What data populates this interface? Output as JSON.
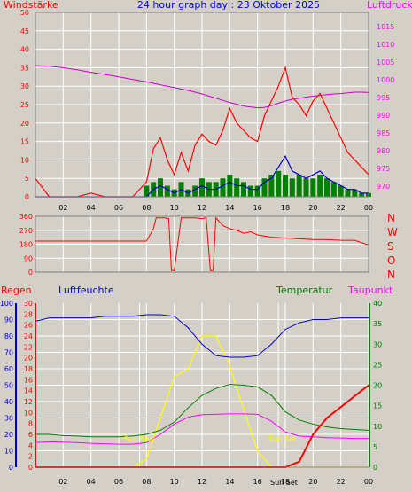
{
  "header": {
    "left_label": "Windstärke",
    "title": "24 hour graph day : 23 Oktober 2025",
    "right_label": "Luftdruck"
  },
  "colors": {
    "background": "#d4d0c8",
    "wind_axis": "#ff0000",
    "pressure_axis": "#ff00ff",
    "humidity": "#0000cc",
    "temperature": "#008000",
    "dewpoint": "#ff00ff",
    "rain": "#ff0000",
    "solar": "#ffff00",
    "grid": "#ffffff"
  },
  "x_axis": {
    "ticks": [
      "02",
      "04",
      "06",
      "08",
      "10",
      "12",
      "14",
      "16",
      "18",
      "20",
      "22",
      "00"
    ],
    "sun_rise_label": "Sun Rise",
    "sun_set_label": "Sun Set",
    "sun_set_bottom_label": "Sun Set"
  },
  "direction_labels": [
    "N",
    "W",
    "S",
    "O",
    "N"
  ],
  "bottom_header": {
    "rain": "Regen",
    "humidity": "Luftfeuchte",
    "temperature": "Temperatur",
    "dewpoint": "Taupunkt"
  },
  "chart_data": [
    {
      "type": "line",
      "title": "24 hour graph day : 23 Oktober 2025",
      "x": [
        0,
        1,
        2,
        3,
        4,
        5,
        6,
        7,
        8,
        8.5,
        9,
        9.5,
        10,
        10.5,
        11,
        11.5,
        12,
        12.5,
        13,
        13.5,
        14,
        14.5,
        15,
        15.5,
        16,
        16.5,
        17,
        17.5,
        18,
        18.5,
        19,
        19.5,
        20,
        20.5,
        21,
        21.5,
        22,
        22.5,
        23,
        23.5,
        24
      ],
      "xlim": [
        0,
        24
      ],
      "y_left": {
        "label": "Windstärke",
        "ticks": [
          0,
          5,
          10,
          15,
          20,
          25,
          30,
          35,
          40,
          45,
          50
        ],
        "lim": [
          0,
          50
        ]
      },
      "y_right": {
        "label": "Luftdruck",
        "ticks": [
          970,
          975,
          980,
          985,
          990,
          995,
          1000,
          1005,
          1010,
          1015
        ],
        "lim": [
          967,
          1019
        ]
      },
      "series": [
        {
          "name": "Windstärke",
          "axis": "left",
          "style": "gust",
          "values": [
            5,
            0,
            0,
            0,
            1,
            0,
            0,
            0,
            4,
            13,
            16,
            10,
            6,
            12,
            7,
            14,
            17,
            15,
            14,
            18,
            24,
            20,
            18,
            16,
            15,
            22,
            26,
            30,
            35,
            27,
            25,
            22,
            26,
            28,
            24,
            20,
            16,
            12,
            10,
            8,
            6
          ]
        },
        {
          "name": "",
          "axis": "left",
          "style": "average",
          "values": [
            0,
            0,
            0,
            0,
            0,
            0,
            0,
            0,
            0,
            2,
            3,
            2,
            1,
            2,
            1,
            2,
            3,
            2,
            2,
            3,
            4,
            3,
            3,
            2,
            2,
            4,
            5,
            8,
            11,
            7,
            6,
            5,
            6,
            7,
            5,
            4,
            3,
            2,
            2,
            1,
            1
          ]
        },
        {
          "name": "",
          "axis": "left",
          "style": "bars",
          "values": [
            0,
            0,
            0,
            0,
            0,
            0,
            0,
            0,
            3,
            4,
            5,
            3,
            2,
            4,
            2,
            3,
            5,
            4,
            4,
            5,
            6,
            5,
            4,
            3,
            3,
            5,
            6,
            7,
            6,
            5,
            6,
            5,
            5,
            6,
            5,
            4,
            3,
            2,
            2,
            1,
            1
          ]
        },
        {
          "name": "Luftdruck",
          "axis": "right",
          "values": [
            1004,
            1003.8,
            1003.4,
            1002.8,
            1002.1,
            1001.5,
            1000.8,
            1000.1,
            999.4,
            999,
            998.6,
            998.2,
            997.8,
            997.4,
            997,
            996.5,
            996,
            995.4,
            994.8,
            994.2,
            993.6,
            993.1,
            992.6,
            992.3,
            992.1,
            992.2,
            992.7,
            993.4,
            994,
            994.5,
            994.8,
            995.1,
            995.4,
            995.6,
            995.8,
            996,
            996.1,
            996.3,
            996.5,
            996.5,
            996.4
          ]
        }
      ]
    },
    {
      "type": "line",
      "x": [
        0,
        1,
        2,
        3,
        4,
        5,
        6,
        7,
        8,
        8.5,
        8.7,
        9,
        9.3,
        9.6,
        9.8,
        10,
        10.5,
        11,
        11.5,
        12,
        12.3,
        12.6,
        12.8,
        13,
        13.5,
        14,
        14.5,
        15,
        15.5,
        16,
        17,
        18,
        19,
        20,
        21,
        22,
        23,
        24
      ],
      "xlim": [
        0,
        24
      ],
      "ylim": [
        0,
        360
      ],
      "y_ticks": [
        0,
        90,
        180,
        270,
        360
      ],
      "series": [
        {
          "name": "",
          "values": [
            200,
            200,
            200,
            200,
            200,
            200,
            200,
            200,
            200,
            280,
            350,
            350,
            350,
            345,
            10,
            10,
            350,
            350,
            350,
            345,
            350,
            10,
            10,
            350,
            300,
            280,
            270,
            250,
            260,
            240,
            225,
            220,
            215,
            210,
            210,
            205,
            205,
            175
          ]
        }
      ]
    },
    {
      "type": "line",
      "x": [
        0,
        1,
        2,
        3,
        4,
        5,
        6,
        7,
        8,
        9,
        10,
        11,
        12,
        13,
        14,
        15,
        16,
        17,
        18,
        19,
        20,
        21,
        22,
        23,
        24
      ],
      "xlim": [
        0,
        24
      ],
      "axes": {
        "rain": {
          "label": "Regen",
          "ticks": [
            0,
            2,
            4,
            6,
            8,
            10,
            12,
            14,
            16,
            18,
            20,
            22,
            24,
            26,
            28,
            30
          ],
          "lim": [
            0,
            30
          ]
        },
        "humidity": {
          "label": "Luftfeuchte",
          "ticks": [
            0,
            10,
            20,
            30,
            40,
            50,
            60,
            70,
            80,
            90,
            100
          ],
          "lim": [
            0,
            100
          ]
        },
        "temperature": {
          "label": "Temperatur",
          "ticks": [
            0,
            5,
            10,
            15,
            20,
            25,
            30,
            35,
            40
          ],
          "lim": [
            0,
            40
          ]
        },
        "solar": {
          "label": "",
          "ticks": [],
          "lim": [
            0,
            1
          ]
        }
      },
      "series": [
        {
          "name": "Regen",
          "axis": "rain",
          "values": [
            0,
            0,
            0,
            0,
            0,
            0,
            0,
            0,
            0,
            0,
            0,
            0,
            0,
            0,
            0,
            0,
            0,
            0,
            0,
            1,
            6,
            9,
            11,
            13,
            15
          ]
        },
        {
          "name": "Luftfeuchte",
          "axis": "humidity",
          "values": [
            89,
            91,
            91,
            91,
            91,
            92,
            92,
            92,
            93,
            93,
            92,
            85,
            75,
            68,
            67,
            67,
            68,
            75,
            84,
            88,
            90,
            90,
            91,
            91,
            91
          ]
        },
        {
          "name": "Temperatur",
          "axis": "temperature",
          "values": [
            8,
            8,
            7.7,
            7.6,
            7.4,
            7.4,
            7.4,
            7.6,
            8,
            9,
            11,
            14.5,
            17.5,
            19.2,
            20.2,
            20,
            19.6,
            17.5,
            13.5,
            11.5,
            10.5,
            9.8,
            9.4,
            9.2,
            9
          ]
        },
        {
          "name": "Taupunkt",
          "axis": "temperature",
          "values": [
            6,
            6.2,
            6.1,
            6,
            5.8,
            5.7,
            5.6,
            5.6,
            6,
            8,
            10.5,
            12.2,
            12.8,
            12.9,
            13,
            13,
            12.9,
            11.2,
            8.6,
            7.6,
            7.4,
            7.2,
            7.1,
            7,
            7
          ]
        },
        {
          "name": "",
          "axis": "solar",
          "values": [
            0,
            0,
            0,
            0,
            0,
            0,
            0,
            0,
            0.05,
            0.3,
            0.55,
            0.6,
            0.8,
            0.8,
            0.62,
            0.35,
            0.1,
            0,
            0,
            0,
            0,
            0,
            0,
            0,
            0
          ]
        }
      ]
    }
  ]
}
